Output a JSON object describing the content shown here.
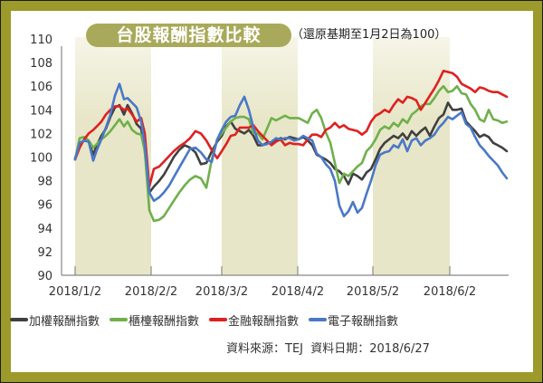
{
  "title": "台股報酬指數比較",
  "subtitle": "（還原基期至1月2日為100）",
  "source": "資料來源：TEJ  資料日期：2018/6/27",
  "colors": {
    "frame": "#9b9a2b",
    "title_pill": "#a9a95b",
    "shade": "#e8e6c8",
    "axis": "#888888"
  },
  "chart_data": {
    "type": "line",
    "title": "台股報酬指數比較",
    "subtitle": "（還原基期至1月2日為100）",
    "xlabel": "",
    "ylabel": "",
    "ylim": [
      90,
      110
    ],
    "yticks": [
      90,
      92,
      94,
      96,
      98,
      100,
      102,
      104,
      106,
      108,
      110
    ],
    "xticks": [
      "2018/1/2",
      "2018/2/2",
      "2018/3/2",
      "2018/4/2",
      "2018/5/2",
      "2018/6/2"
    ],
    "shaded_months": [
      "2018/1",
      "2018/3",
      "2018/5"
    ],
    "grid": false,
    "legend_position": "bottom",
    "x": [
      83,
      88,
      93,
      98,
      103,
      107,
      112,
      117,
      122,
      127,
      132,
      137,
      141,
      146,
      151,
      156,
      160,
      165,
      170,
      176,
      181,
      187,
      192,
      198,
      204,
      210,
      216,
      222,
      228,
      234,
      240,
      245,
      250,
      255,
      260,
      265,
      270,
      275,
      280,
      285,
      290,
      295,
      300,
      305,
      310,
      315,
      320,
      325,
      330,
      335,
      340,
      345,
      350,
      355,
      360,
      365,
      370,
      375,
      380,
      385,
      390,
      395,
      400,
      405,
      410,
      415,
      420,
      425,
      430,
      435,
      440,
      445,
      450,
      455,
      460,
      465,
      470,
      475,
      480,
      485,
      490,
      495,
      500,
      505,
      510,
      515,
      520,
      525,
      530,
      535,
      540,
      545,
      550,
      555,
      560
    ],
    "series": [
      {
        "name": "加權報酬指數",
        "color": "#404040",
        "values": [
          99.9,
          101.1,
          101.4,
          101.3,
          100.2,
          101.0,
          101.8,
          102.4,
          103.4,
          104.2,
          104.4,
          103.6,
          104.4,
          103.7,
          102.8,
          102.4,
          100.5,
          97.0,
          97.5,
          98.0,
          98.5,
          99.3,
          100.0,
          100.6,
          101.0,
          100.8,
          100.4,
          99.4,
          99.5,
          100.5,
          101.3,
          101.8,
          102.6,
          103.0,
          102.4,
          102.2,
          102.0,
          102.3,
          101.8,
          101.0,
          101.0,
          101.2,
          101.2,
          101.4,
          101.6,
          101.5,
          101.7,
          101.6,
          101.5,
          101.7,
          101.4,
          101.0,
          100.2,
          100.0,
          99.8,
          99.5,
          99.0,
          98.8,
          98.4,
          97.7,
          98.6,
          98.4,
          98.1,
          98.7,
          99.0,
          99.8,
          100.7,
          101.2,
          101.5,
          101.8,
          101.6,
          102.0,
          101.5,
          102.2,
          101.8,
          102.2,
          102.5,
          101.8,
          102.6,
          103.3,
          103.6,
          104.6,
          104.0,
          104.0,
          104.1,
          103.0,
          102.6,
          102.2,
          101.7,
          101.9,
          101.7,
          101.2,
          101.0,
          100.8,
          100.5
        ]
      },
      {
        "name": "櫃檯報酬指數",
        "color": "#6fb04a",
        "values": [
          99.8,
          101.6,
          101.7,
          101.4,
          100.8,
          101.1,
          101.5,
          101.8,
          102.2,
          102.7,
          103.2,
          102.6,
          103.0,
          102.3,
          102.0,
          101.9,
          100.5,
          95.5,
          94.6,
          94.7,
          95.0,
          95.7,
          96.3,
          97.0,
          97.6,
          98.1,
          98.4,
          98.2,
          97.4,
          99.8,
          101.5,
          102.0,
          102.5,
          103.0,
          103.3,
          103.4,
          103.4,
          103.2,
          102.0,
          102.0,
          101.5,
          102.4,
          103.3,
          103.1,
          103.3,
          103.5,
          103.3,
          103.3,
          103.3,
          103.1,
          102.9,
          103.7,
          104.0,
          103.3,
          102.1,
          101.2,
          99.5,
          97.8,
          98.6,
          98.4,
          98.8,
          99.2,
          99.5,
          100.5,
          100.9,
          101.5,
          102.3,
          102.6,
          102.4,
          102.9,
          102.6,
          103.2,
          102.9,
          103.6,
          103.9,
          104.3,
          104.5,
          104.5,
          105.0,
          105.6,
          106.0,
          105.5,
          105.6,
          106.0,
          105.4,
          105.3,
          104.5,
          104.0,
          103.2,
          103.0,
          104.0,
          103.2,
          103.1,
          102.9,
          103.0
        ]
      },
      {
        "name": "金融報酬指數",
        "color": "#e02020",
        "values": [
          99.8,
          100.8,
          101.5,
          102.0,
          102.3,
          102.6,
          103.0,
          103.6,
          104.0,
          104.3,
          104.3,
          104.0,
          104.1,
          103.6,
          103.0,
          103.3,
          102.0,
          97.5,
          99.0,
          99.2,
          99.6,
          100.1,
          100.5,
          100.9,
          101.2,
          101.6,
          102.2,
          102.0,
          101.4,
          100.6,
          99.9,
          100.5,
          101.1,
          101.8,
          101.9,
          102.5,
          102.5,
          102.5,
          102.7,
          102.2,
          101.8,
          101.4,
          101.0,
          101.3,
          101.5,
          101.0,
          101.2,
          101.1,
          101.1,
          101.0,
          101.5,
          101.9,
          101.9,
          101.7,
          102.3,
          102.5,
          102.9,
          102.5,
          102.7,
          102.4,
          102.3,
          102.2,
          101.9,
          102.2,
          103.0,
          103.5,
          103.7,
          104.0,
          103.8,
          104.4,
          104.9,
          104.6,
          105.1,
          105.0,
          104.8,
          104.0,
          104.6,
          105.2,
          105.8,
          106.5,
          107.3,
          107.2,
          107.1,
          106.8,
          106.2,
          106.0,
          105.8,
          105.5,
          105.9,
          105.8,
          105.6,
          105.5,
          105.5,
          105.3,
          105.1
        ]
      },
      {
        "name": "電子報酬指數",
        "color": "#4a78c8",
        "values": [
          99.8,
          101.2,
          101.4,
          101.3,
          99.7,
          100.6,
          101.5,
          102.5,
          103.6,
          105.2,
          106.2,
          104.9,
          105.0,
          104.6,
          104.2,
          103.0,
          101.0,
          97.0,
          96.3,
          96.6,
          97.0,
          97.6,
          98.3,
          99.1,
          99.9,
          100.7,
          100.8,
          100.4,
          99.8,
          99.6,
          101.5,
          102.3,
          103.0,
          103.4,
          103.5,
          104.4,
          105.1,
          104.0,
          102.5,
          101.4,
          101.0,
          101.1,
          101.3,
          101.6,
          101.5,
          101.6,
          101.6,
          101.4,
          101.5,
          101.8,
          101.6,
          101.4,
          100.3,
          100.0,
          99.4,
          99.0,
          98.0,
          95.9,
          95.0,
          95.4,
          96.2,
          95.3,
          95.7,
          96.9,
          98.0,
          99.3,
          100.2,
          100.4,
          100.5,
          101.0,
          100.8,
          101.5,
          100.5,
          101.4,
          101.6,
          101.0,
          101.4,
          101.6,
          101.9,
          102.5,
          102.9,
          103.4,
          103.2,
          103.5,
          103.8,
          102.8,
          102.5,
          101.7,
          101.0,
          100.6,
          100.1,
          99.7,
          99.3,
          98.7,
          98.2
        ]
      }
    ]
  },
  "legend": [
    {
      "label": "加權報酬指數",
      "color": "#404040"
    },
    {
      "label": "櫃檯報酬指數",
      "color": "#6fb04a"
    },
    {
      "label": "金融報酬指數",
      "color": "#e02020"
    },
    {
      "label": "電子報酬指數",
      "color": "#4a78c8"
    }
  ]
}
